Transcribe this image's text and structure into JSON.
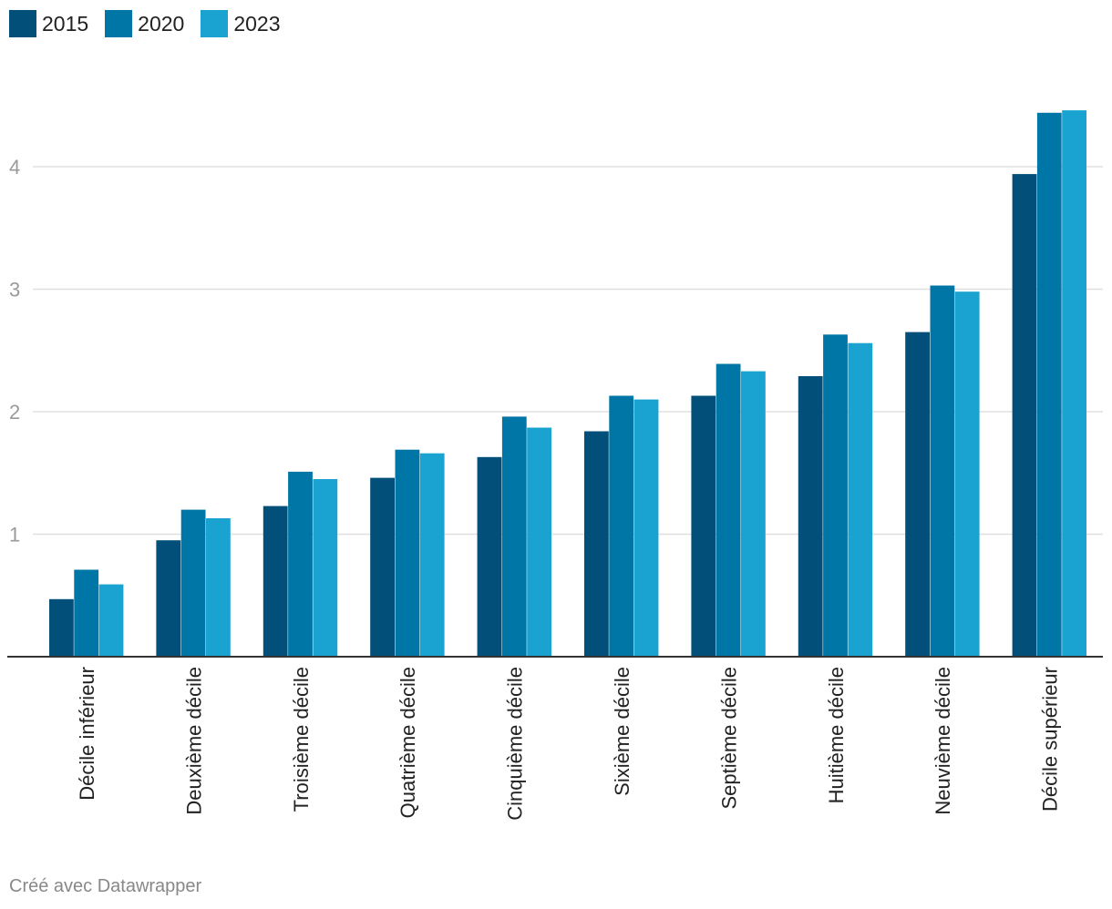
{
  "chart_data": {
    "type": "bar",
    "categories": [
      "Décile inférieur",
      "Deuxième décile",
      "Troisième décile",
      "Quatrième décile",
      "Cinquième décile",
      "Sixième décile",
      "Septième décile",
      "Huitième décile",
      "Neuvième décile",
      "Décile supérieur"
    ],
    "series": [
      {
        "name": "2015",
        "color": "#02507a",
        "values": [
          0.47,
          0.95,
          1.23,
          1.46,
          1.63,
          1.84,
          2.13,
          2.29,
          2.65,
          3.94
        ]
      },
      {
        "name": "2020",
        "color": "#0076a6",
        "values": [
          0.71,
          1.2,
          1.51,
          1.69,
          1.96,
          2.13,
          2.39,
          2.63,
          3.03,
          4.44
        ]
      },
      {
        "name": "2023",
        "color": "#1aa3d1",
        "values": [
          0.59,
          1.13,
          1.45,
          1.66,
          1.87,
          2.1,
          2.33,
          2.56,
          2.98,
          4.46
        ]
      }
    ],
    "yticks": [
      1,
      2,
      3,
      4
    ],
    "ylim": [
      0,
      4.6
    ],
    "grid": true,
    "legend": "top-left",
    "title": "",
    "xlabel": "",
    "ylabel": ""
  },
  "footer": {
    "credit": "Créé avec Datawrapper"
  }
}
